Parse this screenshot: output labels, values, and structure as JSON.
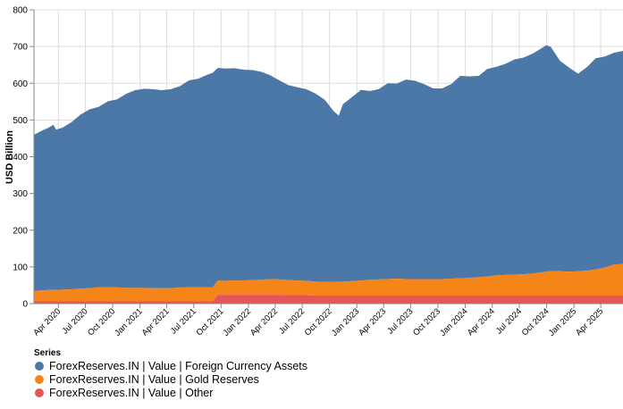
{
  "chart_data": {
    "type": "area",
    "stacked": true,
    "ylabel": "USD Billion",
    "ylim": [
      0,
      800
    ],
    "yticks": [
      0,
      100,
      200,
      300,
      400,
      500,
      600,
      700,
      800
    ],
    "xrange": [
      "2020-01-10",
      "2025-06-15"
    ],
    "xtick_labels": [
      "Apr 2020",
      "Jul 2020",
      "Oct 2020",
      "Jan 2021",
      "Apr 2021",
      "Jul 2021",
      "Oct 2021",
      "Jan 2022",
      "Apr 2022",
      "Jul 2022",
      "Oct 2022",
      "Jan 2023",
      "Apr 2023",
      "Jul 2023",
      "Oct 2023",
      "Jan 2024",
      "Apr 2024",
      "Jul 2024",
      "Oct 2024",
      "Jan 2025",
      "Apr 2025"
    ],
    "xtick_dates": [
      "2020-04-01",
      "2020-07-01",
      "2020-10-01",
      "2021-01-01",
      "2021-04-01",
      "2021-07-01",
      "2021-10-01",
      "2022-01-01",
      "2022-04-01",
      "2022-07-01",
      "2022-10-01",
      "2023-01-01",
      "2023-04-01",
      "2023-07-01",
      "2023-10-01",
      "2024-01-01",
      "2024-04-01",
      "2024-07-01",
      "2024-10-01",
      "2025-01-01",
      "2025-04-01"
    ],
    "grid": true,
    "legend_title": "Series",
    "legend_position": "bottom-left",
    "x": [
      "2020-01-10",
      "2020-02-01",
      "2020-03-01",
      "2020-03-15",
      "2020-03-25",
      "2020-04-15",
      "2020-05-15",
      "2020-06-15",
      "2020-07-15",
      "2020-08-15",
      "2020-09-15",
      "2020-10-15",
      "2020-11-15",
      "2020-12-15",
      "2021-01-15",
      "2021-02-15",
      "2021-03-15",
      "2021-04-15",
      "2021-05-15",
      "2021-06-15",
      "2021-07-15",
      "2021-08-15",
      "2021-09-03",
      "2021-09-20",
      "2021-10-15",
      "2021-11-15",
      "2021-12-15",
      "2022-01-15",
      "2022-02-15",
      "2022-03-15",
      "2022-04-15",
      "2022-05-15",
      "2022-06-15",
      "2022-07-15",
      "2022-08-15",
      "2022-09-15",
      "2022-10-15",
      "2022-11-01",
      "2022-11-15",
      "2022-12-15",
      "2023-01-15",
      "2023-02-15",
      "2023-03-15",
      "2023-04-15",
      "2023-05-15",
      "2023-06-15",
      "2023-07-15",
      "2023-08-15",
      "2023-09-15",
      "2023-10-15",
      "2023-11-15",
      "2023-12-15",
      "2024-01-15",
      "2024-02-15",
      "2024-03-15",
      "2024-04-15",
      "2024-05-15",
      "2024-06-15",
      "2024-07-15",
      "2024-08-15",
      "2024-09-15",
      "2024-09-30",
      "2024-10-15",
      "2024-11-15",
      "2024-12-15",
      "2025-01-15",
      "2025-02-15",
      "2025-03-15",
      "2025-04-15",
      "2025-05-15",
      "2025-06-15"
    ],
    "series": [
      {
        "name": "ForexReserves.IN | Value | Other",
        "color": "#e45756",
        "values": [
          6,
          6,
          6,
          6,
          6,
          6,
          6,
          6,
          6,
          6,
          6,
          6,
          6,
          6,
          6,
          6,
          6,
          6,
          6,
          6,
          6,
          6,
          6,
          24,
          24,
          24,
          24,
          24,
          24,
          24,
          24,
          23,
          23,
          23,
          22,
          22,
          22,
          22,
          22,
          22,
          22,
          22,
          22,
          22,
          22,
          22,
          22,
          22,
          22,
          22,
          22,
          22,
          22,
          22,
          22,
          22,
          22,
          22,
          22,
          22,
          22,
          22,
          22,
          22,
          22,
          22,
          22,
          22,
          22,
          22,
          22
        ]
      },
      {
        "name": "ForexReserves.IN | Value | Gold Reserves",
        "color": "#f58518",
        "values": [
          29,
          30,
          31,
          31,
          31,
          32,
          33,
          35,
          36,
          39,
          39,
          38,
          37,
          37,
          37,
          36,
          36,
          36,
          38,
          38,
          39,
          39,
          39,
          39,
          38,
          39,
          39,
          40,
          41,
          43,
          42,
          41,
          40,
          39,
          38,
          37,
          37,
          37,
          38,
          39,
          41,
          43,
          44,
          45,
          46,
          45,
          45,
          45,
          45,
          45,
          46,
          47,
          48,
          50,
          52,
          55,
          56,
          57,
          58,
          60,
          63,
          65,
          67,
          66,
          65,
          66,
          68,
          71,
          76,
          84,
          86
        ]
      },
      {
        "name": "ForexReserves.IN | Value | Foreign Currency Assets",
        "color": "#4c78a8",
        "values": [
          425,
          433,
          443,
          450,
          437,
          441,
          455,
          474,
          487,
          491,
          506,
          512,
          528,
          538,
          542,
          542,
          539,
          542,
          548,
          564,
          567,
          578,
          584,
          579,
          578,
          578,
          574,
          572,
          566,
          555,
          542,
          531,
          526,
          522,
          512,
          496,
          465,
          453,
          483,
          501,
          519,
          514,
          518,
          533,
          531,
          543,
          540,
          531,
          519,
          519,
          530,
          551,
          549,
          548,
          565,
          568,
          575,
          586,
          590,
          599,
          611,
          617,
          610,
          573,
          556,
          538,
          555,
          575,
          575,
          577,
          580
        ]
      }
    ]
  },
  "legend": {
    "title": "Series",
    "items": [
      {
        "label": "ForexReserves.IN | Value | Foreign Currency Assets",
        "color": "#4c78a8"
      },
      {
        "label": "ForexReserves.IN | Value | Gold Reserves",
        "color": "#f58518"
      },
      {
        "label": "ForexReserves.IN | Value | Other",
        "color": "#e45756"
      }
    ]
  }
}
